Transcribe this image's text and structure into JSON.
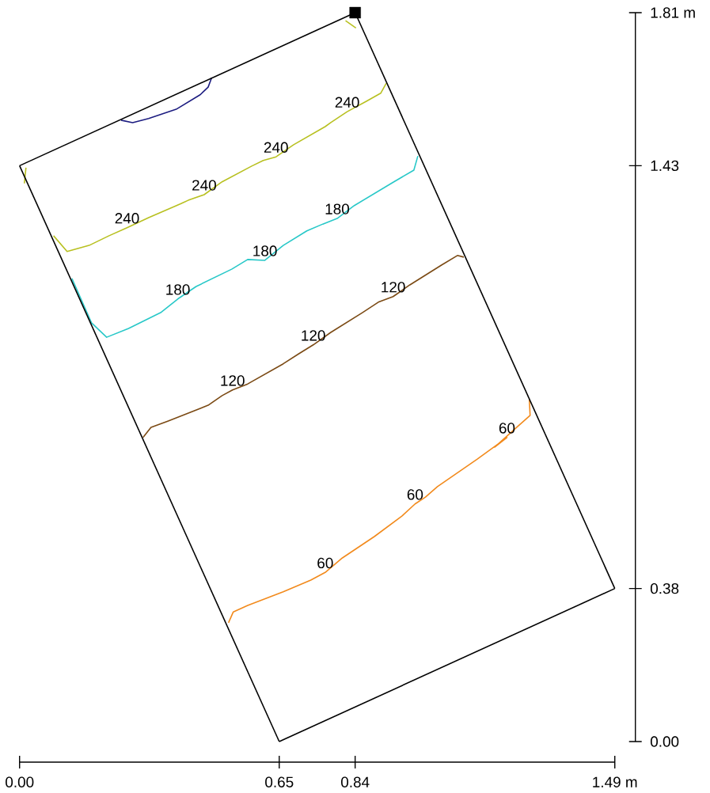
{
  "chart_data": {
    "type": "line",
    "xlim": [
      0,
      1.49
    ],
    "ylim": [
      0,
      1.81
    ],
    "xticks": [
      {
        "value": 0,
        "label": "0.00"
      },
      0.65,
      0.84,
      {
        "value": 1.49,
        "label": "1.49 m"
      }
    ],
    "yticks": [
      {
        "value": 0,
        "label": "0.00"
      },
      0.38,
      1.43,
      {
        "value": 1.81,
        "label": "1.81 m"
      }
    ],
    "grid": false,
    "marker": "none",
    "series": [
      {
        "color": "#f28a1c",
        "x": [
          1.276,
          1.278,
          1.244,
          1.189,
          1.22,
          1.145,
          1.046,
          1.016,
          0.99,
          0.957,
          0.888,
          0.808,
          0.765,
          0.729,
          0.66,
          0.571,
          0.535,
          0.523
        ],
        "values": [
          0.849,
          0.81,
          0.78,
          0.731,
          0.755,
          0.701,
          0.633,
          0.607,
          0.59,
          0.56,
          0.509,
          0.456,
          0.42,
          0.401,
          0.372,
          0.338,
          0.322,
          0.295
        ]
      },
      {
        "color": "#7b4a14",
        "x": [
          0.309,
          0.329,
          0.372,
          0.472,
          0.507,
          0.533,
          0.571,
          0.66,
          0.699,
          0.735,
          0.779,
          0.858,
          0.898,
          0.935,
          0.977,
          1.056,
          1.096,
          1.112
        ],
        "values": [
          0.755,
          0.78,
          0.796,
          0.835,
          0.859,
          0.873,
          0.888,
          0.938,
          0.963,
          0.985,
          1.016,
          1.065,
          1.091,
          1.105,
          1.134,
          1.183,
          1.207,
          1.203
        ]
      },
      {
        "color": "#28c8c8",
        "x": [
          0.131,
          0.18,
          0.218,
          0.273,
          0.353,
          0.396,
          0.442,
          0.531,
          0.571,
          0.614,
          0.66,
          0.719,
          0.759,
          0.795,
          0.838,
          0.937,
          0.987,
          0.997
        ],
        "values": [
          1.15,
          1.04,
          1.004,
          1.026,
          1.065,
          1.099,
          1.13,
          1.173,
          1.197,
          1.195,
          1.232,
          1.268,
          1.285,
          1.299,
          1.331,
          1.39,
          1.419,
          1.454
        ]
      },
      {
        "color": "#b8c020",
        "x": [
          0.085,
          0.119,
          0.174,
          0.224,
          0.269,
          0.323,
          0.402,
          0.422,
          0.462,
          0.507,
          0.581,
          0.61,
          0.642,
          0.686,
          0.765,
          0.779,
          0.82,
          0.868,
          0.904,
          0.918
        ],
        "values": [
          1.256,
          1.217,
          1.232,
          1.256,
          1.276,
          1.301,
          1.335,
          1.344,
          1.358,
          1.39,
          1.429,
          1.443,
          1.452,
          1.482,
          1.527,
          1.537,
          1.564,
          1.59,
          1.61,
          1.635
        ]
      },
      {
        "color": "#b8c020",
        "x": [
          0.016,
          0.012
        ],
        "values": [
          1.425,
          1.386
        ]
      },
      {
        "color": "#b8c020",
        "x": [
          0.816,
          0.842
        ],
        "values": [
          1.79,
          1.772
        ]
      },
      {
        "color": "#1c1c80",
        "x": [
          0.254,
          0.283,
          0.323,
          0.392,
          0.452,
          0.472,
          0.481
        ],
        "values": [
          1.543,
          1.537,
          1.547,
          1.57,
          1.606,
          1.625,
          1.649
        ]
      },
      {
        "color": "#000000",
        "x": [
          0,
          0.84
        ],
        "values": [
          1.43,
          1.81
        ]
      },
      {
        "color": "#000000",
        "x": [
          0,
          0.65
        ],
        "values": [
          1.43,
          0
        ]
      },
      {
        "color": "#000000",
        "x": [
          0.65,
          1.49
        ],
        "values": [
          0,
          0.38
        ]
      },
      {
        "color": "#000000",
        "x": [
          0.84,
          1.49
        ],
        "values": [
          1.81,
          0.38
        ]
      },
      {
        "type": "scatter",
        "marker": "square",
        "color": "#000000",
        "x": [
          0.84
        ],
        "values": [
          1.81
        ]
      }
    ],
    "annotations": [
      {
        "text": "60",
        "x": 1.22,
        "y": 0.755
      },
      {
        "text": "60",
        "x": 0.99,
        "y": 0.59
      },
      {
        "text": "60",
        "x": 0.765,
        "y": 0.42
      },
      {
        "text": "120",
        "x": 0.533,
        "y": 0.873
      },
      {
        "text": "120",
        "x": 0.735,
        "y": 0.985
      },
      {
        "text": "120",
        "x": 0.935,
        "y": 1.105
      },
      {
        "text": "180",
        "x": 0.396,
        "y": 1.099
      },
      {
        "text": "180",
        "x": 0.614,
        "y": 1.195
      },
      {
        "text": "180",
        "x": 0.795,
        "y": 1.299
      },
      {
        "text": "240",
        "x": 0.269,
        "y": 1.276
      },
      {
        "text": "240",
        "x": 0.462,
        "y": 1.358
      },
      {
        "text": "240",
        "x": 0.642,
        "y": 1.452
      },
      {
        "text": "240",
        "x": 0.82,
        "y": 1.564
      }
    ]
  }
}
